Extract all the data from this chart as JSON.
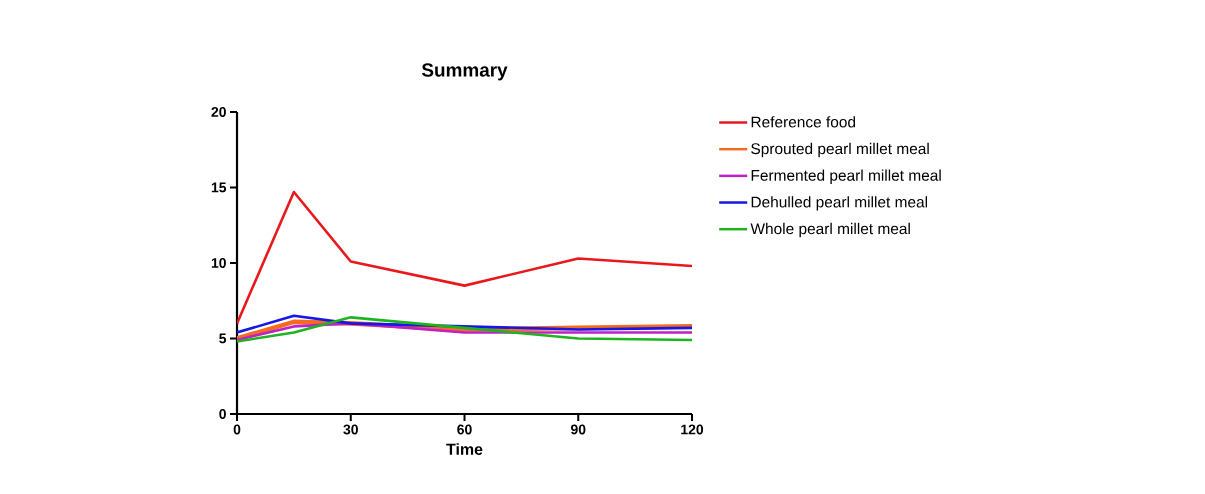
{
  "chart_data": {
    "type": "line",
    "title": "Summary",
    "xlabel": "Time",
    "x": [
      0,
      15,
      30,
      60,
      90,
      120
    ],
    "series": [
      {
        "name": "Reference food",
        "color": "#e8191c",
        "values": [
          6.0,
          14.7,
          10.1,
          8.5,
          10.3,
          9.8
        ]
      },
      {
        "name": "Sprouted pearl millet meal",
        "color": "#f26b21",
        "values": [
          5.0,
          6.1,
          6.0,
          5.6,
          5.7,
          5.8
        ]
      },
      {
        "name": "Fermented pearl millet meal",
        "color": "#c020c8",
        "values": [
          4.9,
          5.8,
          6.0,
          5.4,
          5.4,
          5.4
        ]
      },
      {
        "name": "Dehulled pearl millet meal",
        "color": "#1616e6",
        "values": [
          5.4,
          6.5,
          6.0,
          5.8,
          5.6,
          5.7
        ]
      },
      {
        "name": "Whole pearl millet meal",
        "color": "#1fb41f",
        "values": [
          4.8,
          5.4,
          6.4,
          5.7,
          5.0,
          4.9
        ]
      }
    ],
    "xlim": [
      0,
      120
    ],
    "xticks": [
      0,
      30,
      60,
      90,
      120
    ],
    "ylim": [
      0,
      20
    ],
    "yticks": [
      0,
      5,
      10,
      15,
      20
    ],
    "grid": false,
    "legend": "right",
    "marker": "none",
    "line_style": "solid"
  }
}
